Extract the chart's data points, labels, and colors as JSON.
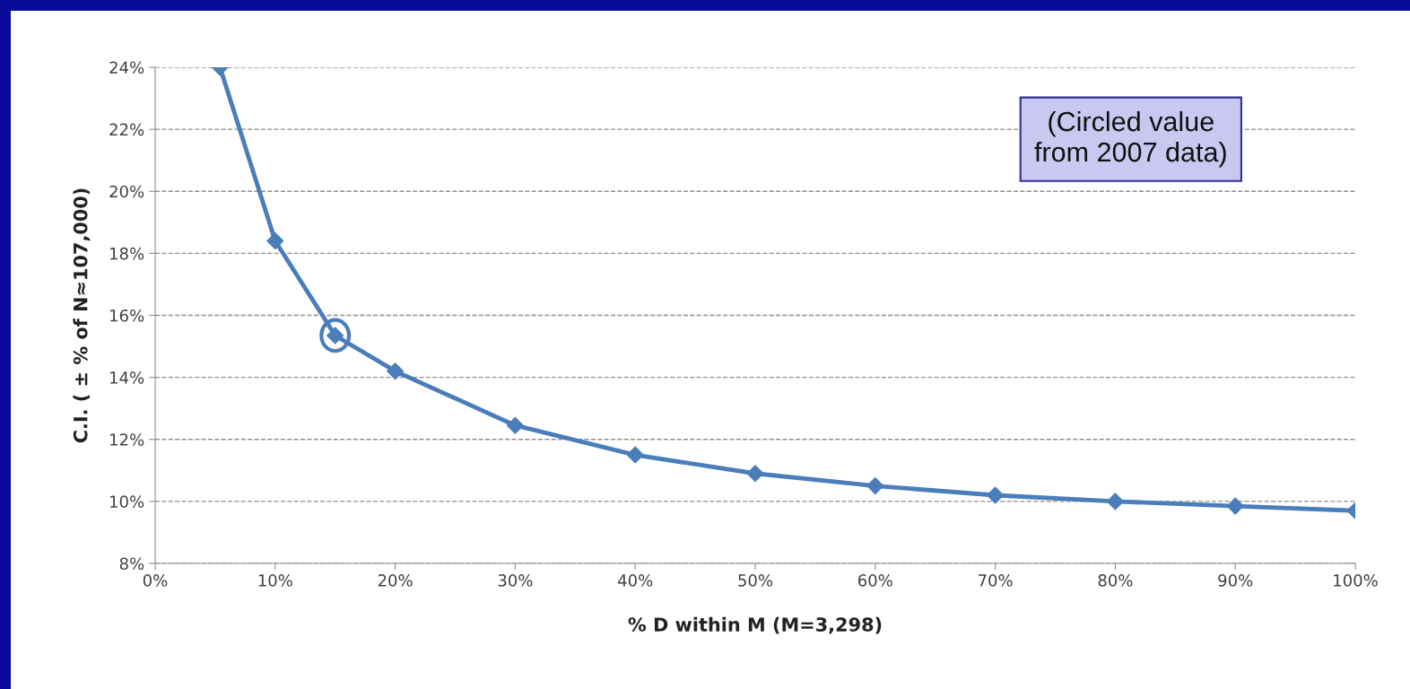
{
  "chart_data": {
    "type": "line",
    "xlabel": "% D within M (M=3,298)",
    "ylabel": "C.I. ( ± % of N≈107,000)",
    "series": [
      {
        "color": "#4a7ebb",
        "x": [
          5.4,
          10,
          15,
          20,
          30,
          40,
          50,
          60,
          70,
          80,
          90,
          100
        ],
        "values": [
          24,
          18.4,
          15.35,
          14.2,
          12.45,
          11.5,
          10.9,
          10.5,
          10.2,
          10.0,
          9.85,
          9.7
        ]
      }
    ],
    "xlim": [
      0,
      100
    ],
    "ylim": [
      8,
      24
    ],
    "xticks": [
      {
        "value": 0,
        "label": "0%"
      },
      {
        "value": 10,
        "label": "10%"
      },
      {
        "value": 20,
        "label": "20%"
      },
      {
        "value": 30,
        "label": "30%"
      },
      {
        "value": 40,
        "label": "40%"
      },
      {
        "value": 50,
        "label": "50%"
      },
      {
        "value": 60,
        "label": "60%"
      },
      {
        "value": 70,
        "label": "70%"
      },
      {
        "value": 80,
        "label": "80%"
      },
      {
        "value": 90,
        "label": "90%"
      },
      {
        "value": 100,
        "label": "100%"
      }
    ],
    "yticks": [
      {
        "value": 8,
        "label": "8%"
      },
      {
        "value": 10,
        "label": "10%"
      },
      {
        "value": 12,
        "label": "12%"
      },
      {
        "value": 14,
        "label": "14%"
      },
      {
        "value": 16,
        "label": "16%"
      },
      {
        "value": 18,
        "label": "18%"
      },
      {
        "value": 20,
        "label": "20%"
      },
      {
        "value": 22,
        "label": "22%"
      },
      {
        "value": 24,
        "label": "24%"
      }
    ],
    "grid": "y",
    "marker": "diamond",
    "line_style": "solid",
    "annotations": [
      "(Circled value\nfrom 2007 data)"
    ]
  }
}
